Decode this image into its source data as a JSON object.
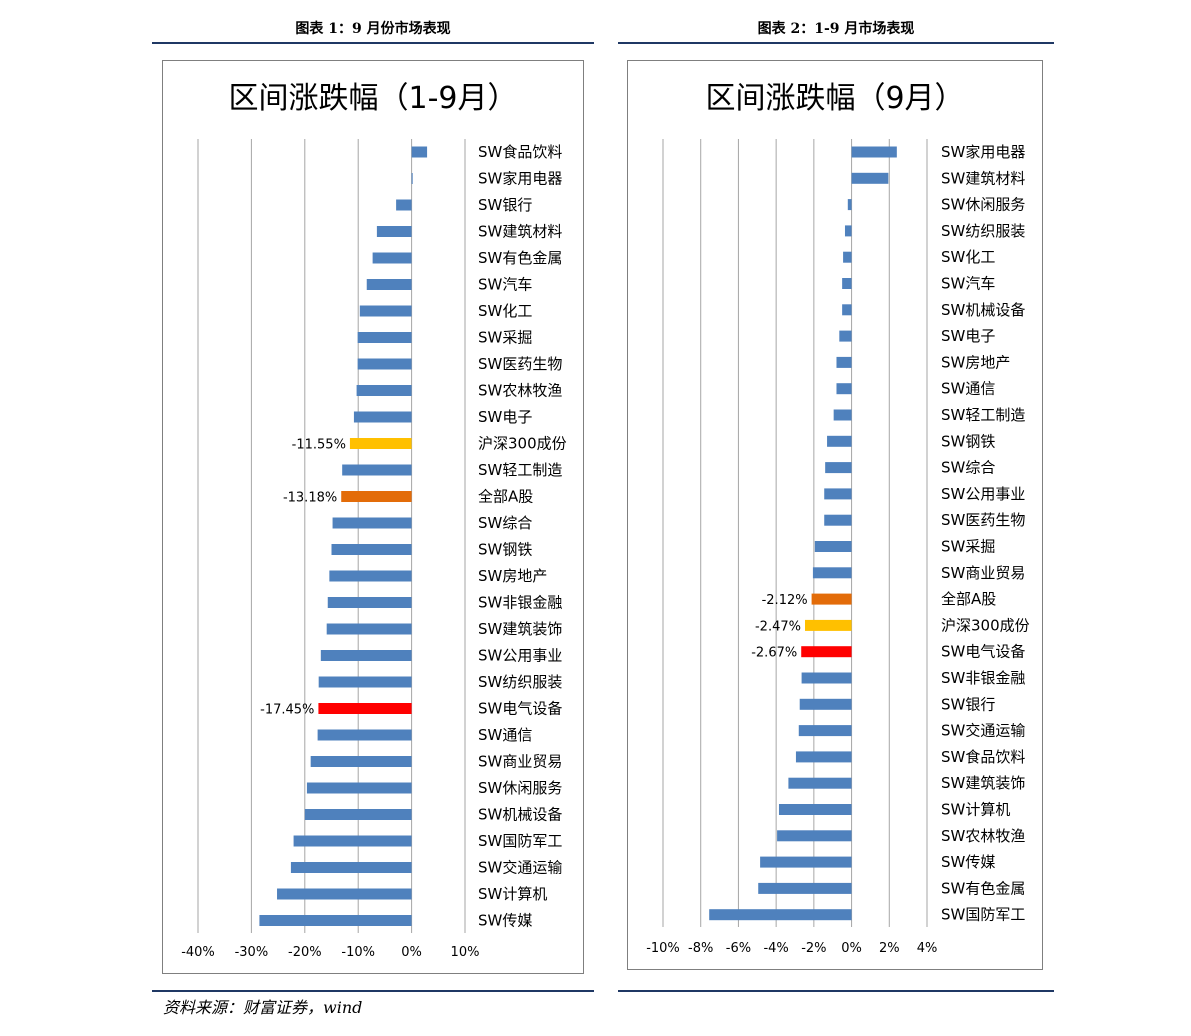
{
  "captions": {
    "left": "图表 1：9 月份市场表现",
    "right": "图表 2：1-9 月市场表现"
  },
  "source": "资料来源：财富证券，wind",
  "chart_data": [
    {
      "type": "bar",
      "orientation": "horizontal",
      "title": "区间涨跌幅（1-9月）",
      "xlim": [
        -40,
        10
      ],
      "x_ticks": [
        "-40%",
        "-30%",
        "-20%",
        "-10%",
        "0%",
        "10%"
      ],
      "x_tick_values": [
        -40,
        -30,
        -20,
        -10,
        0,
        10
      ],
      "grid": true,
      "legend": "none",
      "categories": [
        "SW食品饮料",
        "SW家用电器",
        "SW银行",
        "SW建筑材料",
        "SW有色金属",
        "SW汽车",
        "SW化工",
        "SW采掘",
        "SW医药生物",
        "SW农林牧渔",
        "SW电子",
        "沪深300成份",
        "SW轻工制造",
        "全部A股",
        "SW综合",
        "SW钢铁",
        "SW房地产",
        "SW非银金融",
        "SW建筑装饰",
        "SW公用事业",
        "SW纺织服装",
        "SW电气设备",
        "SW通信",
        "SW商业贸易",
        "SW休闲服务",
        "SW机械设备",
        "SW国防军工",
        "SW交通运输",
        "SW计算机",
        "SW传媒"
      ],
      "values": [
        2.9,
        0.2,
        -2.9,
        -6.5,
        -7.3,
        -8.4,
        -9.7,
        -10.1,
        -10.1,
        -10.3,
        -10.8,
        -11.55,
        -13.0,
        -13.18,
        -14.8,
        -15.0,
        -15.4,
        -15.7,
        -15.9,
        -17.0,
        -17.4,
        -17.45,
        -17.6,
        -18.9,
        -19.6,
        -20.0,
        -22.1,
        -22.6,
        -25.2,
        -28.5
      ],
      "colors": [
        "#4f81bd",
        "#4f81bd",
        "#4f81bd",
        "#4f81bd",
        "#4f81bd",
        "#4f81bd",
        "#4f81bd",
        "#4f81bd",
        "#4f81bd",
        "#4f81bd",
        "#4f81bd",
        "#ffc000",
        "#4f81bd",
        "#e36c09",
        "#4f81bd",
        "#4f81bd",
        "#4f81bd",
        "#4f81bd",
        "#4f81bd",
        "#4f81bd",
        "#4f81bd",
        "#ff0000",
        "#4f81bd",
        "#4f81bd",
        "#4f81bd",
        "#4f81bd",
        "#4f81bd",
        "#4f81bd",
        "#4f81bd",
        "#4f81bd"
      ],
      "data_labels": [
        "",
        "",
        "",
        "",
        "",
        "",
        "",
        "",
        "",
        "",
        "",
        "-11.55%",
        "",
        "-13.18%",
        "",
        "",
        "",
        "",
        "",
        "",
        "",
        "-17.45%",
        "",
        "",
        "",
        "",
        "",
        "",
        "",
        ""
      ]
    },
    {
      "type": "bar",
      "orientation": "horizontal",
      "title": "区间涨跌幅（9月）",
      "xlim": [
        -10,
        4
      ],
      "x_ticks": [
        "-10%",
        "-8%",
        "-6%",
        "-4%",
        "-2%",
        "0%",
        "2%",
        "4%"
      ],
      "x_tick_values": [
        -10,
        -8,
        -6,
        -4,
        -2,
        0,
        2,
        4
      ],
      "grid": true,
      "legend": "none",
      "categories": [
        "SW家用电器",
        "SW建筑材料",
        "SW休闲服务",
        "SW纺织服装",
        "SW化工",
        "SW汽车",
        "SW机械设备",
        "SW电子",
        "SW房地产",
        "SW通信",
        "SW轻工制造",
        "SW钢铁",
        "SW综合",
        "SW公用事业",
        "SW医药生物",
        "SW采掘",
        "SW商业贸易",
        "全部A股",
        "沪深300成份",
        "SW电气设备",
        "SW非银金融",
        "SW银行",
        "SW交通运输",
        "SW食品饮料",
        "SW建筑装饰",
        "SW计算机",
        "SW农林牧渔",
        "SW传媒",
        "SW有色金属",
        "SW国防军工"
      ],
      "values": [
        2.4,
        1.95,
        -0.2,
        -0.35,
        -0.45,
        -0.5,
        -0.5,
        -0.65,
        -0.8,
        -0.8,
        -0.95,
        -1.3,
        -1.4,
        -1.45,
        -1.45,
        -1.95,
        -2.05,
        -2.12,
        -2.47,
        -2.67,
        -2.65,
        -2.75,
        -2.8,
        -2.95,
        -3.35,
        -3.85,
        -3.95,
        -4.85,
        -4.95,
        -7.55
      ],
      "colors": [
        "#4f81bd",
        "#4f81bd",
        "#4f81bd",
        "#4f81bd",
        "#4f81bd",
        "#4f81bd",
        "#4f81bd",
        "#4f81bd",
        "#4f81bd",
        "#4f81bd",
        "#4f81bd",
        "#4f81bd",
        "#4f81bd",
        "#4f81bd",
        "#4f81bd",
        "#4f81bd",
        "#4f81bd",
        "#e36c09",
        "#ffc000",
        "#ff0000",
        "#4f81bd",
        "#4f81bd",
        "#4f81bd",
        "#4f81bd",
        "#4f81bd",
        "#4f81bd",
        "#4f81bd",
        "#4f81bd",
        "#4f81bd",
        "#4f81bd"
      ],
      "data_labels": [
        "",
        "",
        "",
        "",
        "",
        "",
        "",
        "",
        "",
        "",
        "",
        "",
        "",
        "",
        "",
        "",
        "",
        "-2.12%",
        "-2.47%",
        "-2.67%",
        "",
        "",
        "",
        "",
        "",
        "",
        "",
        "",
        "",
        ""
      ]
    }
  ]
}
